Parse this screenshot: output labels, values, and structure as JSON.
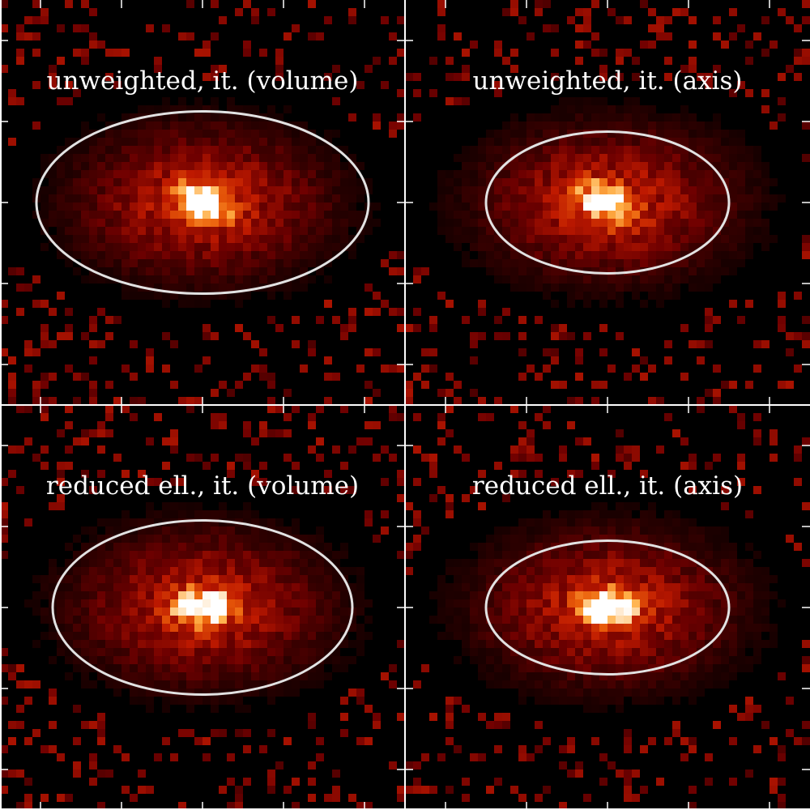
{
  "chart_data": {
    "type": "heatmap",
    "layout": "2x2 grid",
    "colormap": "black-red-orange-white (heat)",
    "grid": false,
    "panels": [
      {
        "title": "unweighted,  it. (volume)",
        "distribution": {
          "core_orientation": "tilted",
          "halo_extent": "broad"
        },
        "ellipse": {
          "semi_major": 0.41,
          "semi_minor": 0.225,
          "center": [
            0,
            0
          ]
        }
      },
      {
        "title": "unweighted,  it. (axis)",
        "distribution": {
          "core_orientation": "tilted",
          "halo_extent": "broad"
        },
        "ellipse": {
          "semi_major": 0.3,
          "semi_minor": 0.175,
          "center": [
            0,
            0
          ]
        }
      },
      {
        "title": "reduced ell.,  it. (volume)",
        "distribution": {
          "core_orientation": "horizontal",
          "halo_extent": "broad"
        },
        "ellipse": {
          "semi_major": 0.37,
          "semi_minor": 0.215,
          "center": [
            0,
            0
          ]
        }
      },
      {
        "title": "reduced ell.,  it. (axis)",
        "distribution": {
          "core_orientation": "horizontal",
          "halo_extent": "broad"
        },
        "ellipse": {
          "semi_major": 0.3,
          "semi_minor": 0.165,
          "center": [
            0,
            0
          ]
        }
      }
    ],
    "colors": {
      "ellipse": "#e2e2e2",
      "frame": "#ffffff",
      "background": "#000000"
    }
  }
}
